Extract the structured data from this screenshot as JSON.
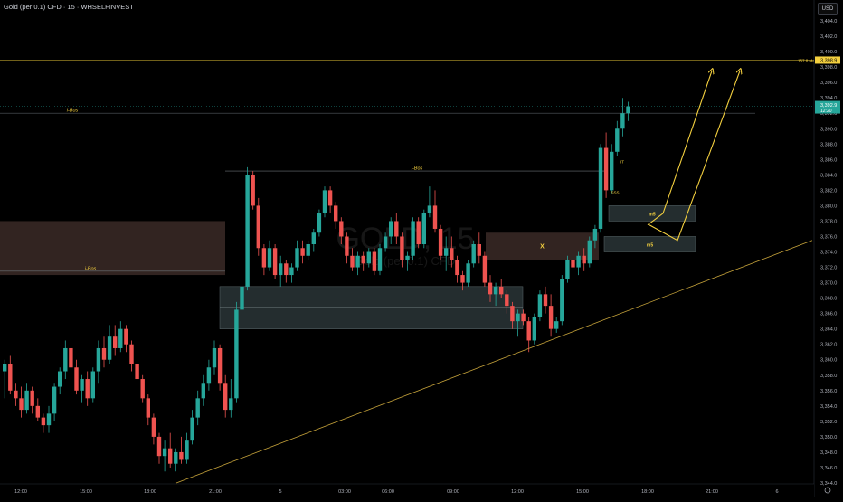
{
  "header": {
    "title": "Gold (per 0.1) CFD · 15 · WHSELFINVEST",
    "currency": "USD"
  },
  "watermark": {
    "symbol": "GOLD, 15",
    "subtitle": "Gold (per 0.1) CFD"
  },
  "colors": {
    "up": "#26a69a",
    "down": "#ef5350",
    "zone_dark": "#2a3537",
    "zone_brown": "#3b2a27",
    "yellow": "#f4d03f",
    "trend": "#c5a23a"
  },
  "chart_data": {
    "type": "candlestick",
    "ylim": [
      3344.0,
      3406.0
    ],
    "y_ticks": [
      "3,404.0",
      "3,402.0",
      "3,400.0",
      "3,398.0",
      "3,396.0",
      "3,394.0",
      "3,392.0",
      "3,390.0",
      "3,388.0",
      "3,386.0",
      "3,384.0",
      "3,382.0",
      "3,380.0",
      "3,378.0",
      "3,376.0",
      "3,374.0",
      "3,372.0",
      "3,370.0",
      "3,368.0",
      "3,366.0",
      "3,364.0",
      "3,362.0",
      "3,360.0",
      "3,358.0",
      "3,356.0",
      "3,354.0",
      "3,352.0",
      "3,350.0",
      "3,348.0",
      "3,346.0",
      "3,344.0"
    ],
    "x_ticks": [
      "12:00",
      "15:00",
      "18:00",
      "21:00",
      "5",
      "03:00",
      "06:00",
      "09:00",
      "12:00",
      "15:00",
      "18:00",
      "21:00",
      "6"
    ],
    "candles": [
      [
        3358.5,
        3360.0,
        3355.0,
        3359.5
      ],
      [
        3359.5,
        3360.5,
        3355.5,
        3356.0
      ],
      [
        3356.0,
        3357.0,
        3354.0,
        3355.0
      ],
      [
        3355.0,
        3356.5,
        3352.5,
        3353.5
      ],
      [
        3353.5,
        3357.0,
        3353.0,
        3356.0
      ],
      [
        3356.0,
        3356.5,
        3353.0,
        3354.0
      ],
      [
        3354.0,
        3355.0,
        3352.0,
        3352.5
      ],
      [
        3352.5,
        3353.0,
        3350.5,
        3351.5
      ],
      [
        3351.5,
        3354.0,
        3350.5,
        3353.0
      ],
      [
        3353.0,
        3357.0,
        3352.0,
        3356.5
      ],
      [
        3356.5,
        3359.0,
        3355.5,
        3358.5
      ],
      [
        3358.5,
        3362.5,
        3357.5,
        3361.5
      ],
      [
        3361.5,
        3362.0,
        3358.0,
        3359.0
      ],
      [
        3359.0,
        3360.0,
        3355.5,
        3356.0
      ],
      [
        3356.0,
        3358.0,
        3354.5,
        3357.5
      ],
      [
        3357.5,
        3358.5,
        3354.0,
        3355.0
      ],
      [
        3355.0,
        3359.0,
        3354.5,
        3358.5
      ],
      [
        3358.5,
        3362.5,
        3357.0,
        3361.5
      ],
      [
        3361.5,
        3363.0,
        3359.0,
        3360.0
      ],
      [
        3360.0,
        3364.5,
        3359.5,
        3363.0
      ],
      [
        3363.0,
        3364.5,
        3360.5,
        3361.5
      ],
      [
        3361.5,
        3365.0,
        3361.0,
        3364.0
      ],
      [
        3364.0,
        3364.5,
        3361.0,
        3362.0
      ],
      [
        3362.0,
        3362.5,
        3358.5,
        3359.5
      ],
      [
        3359.5,
        3360.0,
        3356.5,
        3357.5
      ],
      [
        3357.5,
        3358.0,
        3354.5,
        3355.0
      ],
      [
        3355.0,
        3355.5,
        3351.5,
        3352.5
      ],
      [
        3352.5,
        3353.0,
        3349.0,
        3350.0
      ],
      [
        3350.0,
        3350.5,
        3346.5,
        3347.5
      ],
      [
        3347.5,
        3349.5,
        3345.5,
        3348.5
      ],
      [
        3348.5,
        3350.5,
        3346.0,
        3346.5
      ],
      [
        3346.5,
        3348.5,
        3345.5,
        3348.0
      ],
      [
        3348.0,
        3350.0,
        3346.5,
        3347.0
      ],
      [
        3347.0,
        3350.5,
        3346.5,
        3349.5
      ],
      [
        3349.5,
        3353.5,
        3349.0,
        3352.5
      ],
      [
        3352.5,
        3356.0,
        3351.5,
        3355.0
      ],
      [
        3355.0,
        3358.0,
        3354.0,
        3357.0
      ],
      [
        3357.0,
        3360.0,
        3356.0,
        3359.0
      ],
      [
        3359.0,
        3362.5,
        3358.0,
        3361.5
      ],
      [
        3361.5,
        3362.0,
        3356.0,
        3357.0
      ],
      [
        3357.0,
        3358.0,
        3352.5,
        3353.5
      ],
      [
        3353.5,
        3357.5,
        3352.5,
        3355.0
      ],
      [
        3355.0,
        3367.5,
        3354.5,
        3366.5
      ],
      [
        3366.5,
        3370.5,
        3366.0,
        3369.5
      ],
      [
        3369.5,
        3385.0,
        3369.0,
        3384.0
      ],
      [
        3384.0,
        3384.5,
        3379.5,
        3380.0
      ],
      [
        3380.0,
        3381.0,
        3373.5,
        3374.5
      ],
      [
        3374.5,
        3375.0,
        3371.0,
        3372.0
      ],
      [
        3372.0,
        3375.5,
        3371.5,
        3374.5
      ],
      [
        3374.5,
        3375.0,
        3370.5,
        3371.0
      ],
      [
        3371.0,
        3373.5,
        3369.5,
        3372.5
      ],
      [
        3372.5,
        3373.0,
        3370.0,
        3371.0
      ],
      [
        3371.0,
        3372.5,
        3370.0,
        3372.0
      ],
      [
        3372.0,
        3375.5,
        3371.5,
        3374.5
      ],
      [
        3374.5,
        3375.5,
        3372.5,
        3373.5
      ],
      [
        3373.5,
        3375.5,
        3373.0,
        3375.0
      ],
      [
        3375.0,
        3377.0,
        3374.0,
        3376.5
      ],
      [
        3376.5,
        3379.5,
        3376.0,
        3379.0
      ],
      [
        3379.0,
        3382.5,
        3378.5,
        3382.0
      ],
      [
        3382.0,
        3382.5,
        3379.0,
        3380.0
      ],
      [
        3380.0,
        3380.5,
        3377.0,
        3378.0
      ],
      [
        3378.0,
        3378.5,
        3375.0,
        3376.0
      ],
      [
        3376.0,
        3376.5,
        3372.5,
        3373.5
      ],
      [
        3373.5,
        3374.5,
        3371.5,
        3372.0
      ],
      [
        3372.0,
        3374.0,
        3371.0,
        3373.5
      ],
      [
        3373.5,
        3374.0,
        3371.5,
        3372.5
      ],
      [
        3372.5,
        3374.5,
        3372.0,
        3374.0
      ],
      [
        3374.0,
        3374.5,
        3371.0,
        3371.5
      ],
      [
        3371.5,
        3375.0,
        3371.0,
        3374.5
      ],
      [
        3374.5,
        3376.5,
        3374.0,
        3376.0
      ],
      [
        3376.0,
        3378.5,
        3375.0,
        3378.0
      ],
      [
        3378.0,
        3379.0,
        3375.0,
        3376.0
      ],
      [
        3376.0,
        3376.5,
        3372.0,
        3373.0
      ],
      [
        3373.0,
        3374.0,
        3371.5,
        3373.5
      ],
      [
        3373.5,
        3378.5,
        3373.0,
        3378.0
      ],
      [
        3378.0,
        3378.5,
        3374.5,
        3375.0
      ],
      [
        3375.0,
        3379.5,
        3374.5,
        3379.0
      ],
      [
        3379.0,
        3382.5,
        3378.5,
        3380.0
      ],
      [
        3380.0,
        3382.0,
        3376.5,
        3377.0
      ],
      [
        3377.0,
        3377.5,
        3373.0,
        3373.5
      ],
      [
        3373.5,
        3376.0,
        3371.5,
        3374.5
      ],
      [
        3374.5,
        3376.0,
        3372.0,
        3373.0
      ],
      [
        3373.0,
        3373.5,
        3370.0,
        3371.0
      ],
      [
        3371.0,
        3371.5,
        3369.0,
        3370.0
      ],
      [
        3370.0,
        3373.0,
        3369.5,
        3372.5
      ],
      [
        3372.5,
        3375.5,
        3372.0,
        3375.0
      ],
      [
        3375.0,
        3376.5,
        3372.5,
        3373.5
      ],
      [
        3373.5,
        3374.0,
        3369.5,
        3370.0
      ],
      [
        3370.0,
        3371.0,
        3367.5,
        3368.5
      ],
      [
        3368.5,
        3370.0,
        3367.0,
        3369.5
      ],
      [
        3369.5,
        3370.5,
        3368.0,
        3368.5
      ],
      [
        3368.5,
        3369.0,
        3366.0,
        3367.0
      ],
      [
        3367.0,
        3367.5,
        3364.0,
        3365.0
      ],
      [
        3365.0,
        3366.5,
        3363.0,
        3366.0
      ],
      [
        3366.0,
        3366.5,
        3364.5,
        3365.0
      ],
      [
        3365.0,
        3365.5,
        3361.0,
        3362.5
      ],
      [
        3362.5,
        3366.0,
        3362.0,
        3365.5
      ],
      [
        3365.5,
        3369.0,
        3365.0,
        3368.5
      ],
      [
        3368.5,
        3369.5,
        3366.0,
        3367.0
      ],
      [
        3367.0,
        3368.5,
        3363.0,
        3364.0
      ],
      [
        3364.0,
        3365.5,
        3363.5,
        3365.0
      ],
      [
        3365.0,
        3371.0,
        3364.5,
        3370.5
      ],
      [
        3370.5,
        3373.5,
        3370.0,
        3373.0
      ],
      [
        3373.0,
        3373.5,
        3370.5,
        3372.0
      ],
      [
        3372.0,
        3374.0,
        3371.0,
        3373.5
      ],
      [
        3373.5,
        3374.5,
        3371.5,
        3372.5
      ],
      [
        3372.5,
        3376.0,
        3372.0,
        3375.5
      ],
      [
        3375.5,
        3377.5,
        3374.5,
        3377.0
      ],
      [
        3377.0,
        3388.0,
        3376.5,
        3387.5
      ],
      [
        3387.5,
        3389.5,
        3381.0,
        3382.0
      ],
      [
        3382.0,
        3388.0,
        3381.5,
        3387.0
      ],
      [
        3387.0,
        3391.0,
        3386.5,
        3390.0
      ],
      [
        3390.0,
        3394.0,
        3389.0,
        3392.0
      ],
      [
        3392.0,
        3393.5,
        3391.0,
        3392.9
      ]
    ],
    "price_labels": [
      {
        "label": "157.8 (44)",
        "value": 3398.9,
        "text": "3,398.9",
        "kind": "yellow-line"
      },
      {
        "label": "",
        "value": 3392.9,
        "text": "3,392.9",
        "sub": "12:20",
        "kind": "last-price"
      }
    ],
    "horizontal_levels": [
      {
        "text": "i-Bos",
        "value": 3392.0
      },
      {
        "text": "i-Bos",
        "value": 3384.5
      },
      {
        "text": "i-Bos",
        "value": 3371.5
      }
    ],
    "zones": [
      {
        "kind": "brown",
        "top": 3378.0,
        "bottom": 3371.0
      },
      {
        "kind": "dark",
        "top": 3369.5,
        "bottom": 3364.0
      },
      {
        "kind": "brown",
        "top": 3376.5,
        "bottom": 3373.0,
        "label": "X"
      },
      {
        "kind": "dark",
        "top": 3380.0,
        "bottom": 3378.0,
        "label": "m5"
      },
      {
        "kind": "dark",
        "top": 3376.0,
        "bottom": 3374.0,
        "label": "m5"
      }
    ],
    "annotations": [
      "IT",
      "SSS"
    ],
    "projections": [
      [
        [
          3382.5,
          3377.5
        ],
        [
          3382.5,
          3379.0
        ],
        [
          3382.5,
          3397.5
        ]
      ],
      [
        [
          3382.5,
          3377.5
        ],
        [
          3382.5,
          3375.5
        ],
        [
          3382.5,
          3397.5
        ]
      ]
    ],
    "trendline": [
      3344.0,
      3375.5
    ]
  }
}
